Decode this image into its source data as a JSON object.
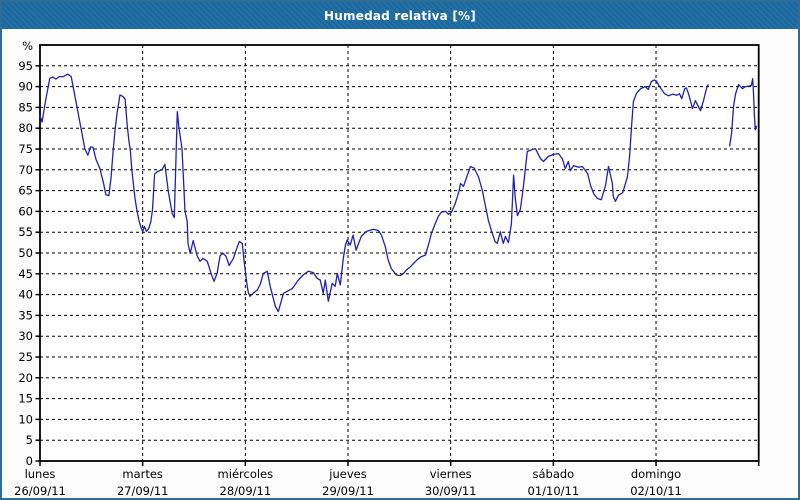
{
  "window": {
    "title": "Humedad relativa [%]"
  },
  "colors": {
    "title_bar": "#1A689F",
    "title_text": "#FFFFFF",
    "window_border": "#2E6E96",
    "panel_bg": "#FCFDFC",
    "plot_bg": "#FFFFFF",
    "plot_border": "#000000",
    "grid": "#000000",
    "tick_text": "#000000",
    "line": "#2121AF"
  },
  "chart_data": {
    "type": "line",
    "title": "Humedad relativa [%]",
    "xlabel": "",
    "ylabel": "%",
    "ylim": [
      0,
      100
    ],
    "ytick_min": 0,
    "ytick_max": 95,
    "ytick_step": 5,
    "grid": "dashed horizontal every 5 units; dashed vertical at each day boundary",
    "legend_position": "none",
    "x_unit": "hours since lunes 26/09/11 00:00",
    "x_range_hours": [
      0,
      168
    ],
    "days": [
      {
        "name": "lunes",
        "date": "26/09/11"
      },
      {
        "name": "martes",
        "date": "27/09/11"
      },
      {
        "name": "miércoles",
        "date": "28/09/11"
      },
      {
        "name": "jueves",
        "date": "29/09/11"
      },
      {
        "name": "viernes",
        "date": "30/09/11"
      },
      {
        "name": "sábado",
        "date": "01/10/11"
      },
      {
        "name": "domingo",
        "date": "02/10/11"
      }
    ],
    "series": [
      {
        "name": "Humedad relativa",
        "points": [
          [
            0,
            83
          ],
          [
            0.5,
            81.5
          ],
          [
            1.2,
            86
          ],
          [
            2.3,
            92
          ],
          [
            3,
            92.3
          ],
          [
            3.7,
            91.8
          ],
          [
            4.5,
            92.4
          ],
          [
            5.5,
            92.4
          ],
          [
            6.5,
            93
          ],
          [
            7.3,
            92.4
          ],
          [
            8.2,
            87.5
          ],
          [
            9.4,
            81
          ],
          [
            10.5,
            75
          ],
          [
            11.2,
            73.5
          ],
          [
            11.8,
            75.5
          ],
          [
            12.4,
            75.4
          ],
          [
            13.1,
            72.5
          ],
          [
            14,
            70.3
          ],
          [
            14.8,
            67
          ],
          [
            15.4,
            64
          ],
          [
            16.1,
            63.8
          ],
          [
            16.6,
            68
          ],
          [
            17.1,
            74.7
          ],
          [
            17.5,
            79.2
          ],
          [
            18,
            83.5
          ],
          [
            18.7,
            88
          ],
          [
            19.4,
            87.6
          ],
          [
            19.9,
            87
          ],
          [
            20.4,
            80.4
          ],
          [
            20.8,
            76.8
          ],
          [
            21.1,
            74.7
          ],
          [
            21.5,
            69.6
          ],
          [
            22.2,
            63.1
          ],
          [
            22.7,
            60
          ],
          [
            23.2,
            57.6
          ],
          [
            23.7,
            55.9
          ],
          [
            24,
            55.2
          ],
          [
            24.4,
            56.4
          ],
          [
            24.9,
            55.2
          ],
          [
            25.4,
            55.9
          ],
          [
            25.9,
            57.5
          ],
          [
            26.3,
            60.4
          ],
          [
            26.8,
            69
          ],
          [
            27.5,
            69.6
          ],
          [
            28.5,
            70
          ],
          [
            29.2,
            71.3
          ],
          [
            30,
            64.8
          ],
          [
            30.9,
            59.5
          ],
          [
            31.4,
            58.5
          ],
          [
            32.1,
            84
          ],
          [
            32.5,
            80
          ],
          [
            33.2,
            75.1
          ],
          [
            33.9,
            60
          ],
          [
            34.4,
            57.6
          ],
          [
            34.6,
            52.3
          ],
          [
            35.1,
            49.9
          ],
          [
            35.8,
            53
          ],
          [
            36.7,
            49.4
          ],
          [
            37.4,
            48
          ],
          [
            38.1,
            48.7
          ],
          [
            39.1,
            48
          ],
          [
            40.2,
            44.4
          ],
          [
            40.7,
            43.2
          ],
          [
            41.4,
            45.1
          ],
          [
            42.1,
            49.4
          ],
          [
            42.8,
            49.9
          ],
          [
            43.5,
            49.2
          ],
          [
            44.2,
            47
          ],
          [
            45.2,
            48.7
          ],
          [
            45.9,
            50.9
          ],
          [
            46.6,
            52.8
          ],
          [
            47.3,
            52.3
          ],
          [
            47.7,
            48
          ],
          [
            48.4,
            42.2
          ],
          [
            48.7,
            40.5
          ],
          [
            49.1,
            39.6
          ],
          [
            49.8,
            40.3
          ],
          [
            50.8,
            41.1
          ],
          [
            51.5,
            42.5
          ],
          [
            52.2,
            45.1
          ],
          [
            53.1,
            45.6
          ],
          [
            53.8,
            42
          ],
          [
            55,
            37.2
          ],
          [
            55.7,
            35.9
          ],
          [
            56.9,
            40.3
          ],
          [
            57.8,
            40.8
          ],
          [
            59,
            41.5
          ],
          [
            60.4,
            43.5
          ],
          [
            61.5,
            44.7
          ],
          [
            62.7,
            45.6
          ],
          [
            63.9,
            45.3
          ],
          [
            64.8,
            43.9
          ],
          [
            65.5,
            43.5
          ],
          [
            66.2,
            40.3
          ],
          [
            66.7,
            43.5
          ],
          [
            67.4,
            38.4
          ],
          [
            68.3,
            42.7
          ],
          [
            69,
            42
          ],
          [
            69.5,
            45.1
          ],
          [
            70.2,
            42.3
          ],
          [
            70.9,
            48.7
          ],
          [
            71.4,
            51.9
          ],
          [
            71.8,
            53.1
          ],
          [
            72.5,
            51.9
          ],
          [
            73.2,
            54.3
          ],
          [
            73.9,
            50.7
          ],
          [
            75.1,
            54
          ],
          [
            76.3,
            55.2
          ],
          [
            77.9,
            55.7
          ],
          [
            79.1,
            55.4
          ],
          [
            79.8,
            54.3
          ],
          [
            80.7,
            51.6
          ],
          [
            81.4,
            48.3
          ],
          [
            82.1,
            46.3
          ],
          [
            83.3,
            44.7
          ],
          [
            84.2,
            44.6
          ],
          [
            84.9,
            45
          ],
          [
            85.6,
            45.9
          ],
          [
            86.6,
            46.7
          ],
          [
            87.3,
            47.5
          ],
          [
            88.4,
            48.6
          ],
          [
            89.1,
            49.1
          ],
          [
            90.1,
            49.5
          ],
          [
            90.8,
            51.9
          ],
          [
            91.5,
            54.7
          ],
          [
            92.4,
            57.1
          ],
          [
            93.1,
            58.8
          ],
          [
            93.8,
            59.8
          ],
          [
            94.8,
            60
          ],
          [
            95.5,
            59.3
          ],
          [
            96.2,
            59.8
          ],
          [
            97.1,
            62
          ],
          [
            98,
            65
          ],
          [
            98.3,
            66.7
          ],
          [
            99,
            66
          ],
          [
            99.9,
            68.7
          ],
          [
            100.6,
            70.8
          ],
          [
            101.5,
            70.4
          ],
          [
            102.5,
            68.3
          ],
          [
            103.4,
            65.1
          ],
          [
            104.1,
            61.5
          ],
          [
            104.8,
            57.9
          ],
          [
            105.7,
            54.7
          ],
          [
            106.4,
            52.7
          ],
          [
            106.9,
            52.3
          ],
          [
            107.6,
            55.1
          ],
          [
            108.3,
            52.3
          ],
          [
            108.8,
            54
          ],
          [
            109.5,
            52.5
          ],
          [
            110.2,
            57
          ],
          [
            110.7,
            68.7
          ],
          [
            111.1,
            63.1
          ],
          [
            111.6,
            59
          ],
          [
            112.3,
            60.5
          ],
          [
            113,
            66
          ],
          [
            113.9,
            74.4
          ],
          [
            114.9,
            74.8
          ],
          [
            115.8,
            75.1
          ],
          [
            117,
            72.7
          ],
          [
            117.7,
            72
          ],
          [
            118.8,
            73.2
          ],
          [
            120,
            73.7
          ],
          [
            121.2,
            73.9
          ],
          [
            122.1,
            72.7
          ],
          [
            122.8,
            70.3
          ],
          [
            123.5,
            72
          ],
          [
            124,
            69.8
          ],
          [
            124.7,
            71
          ],
          [
            125.9,
            70.6
          ],
          [
            126.8,
            70.8
          ],
          [
            128,
            69.1
          ],
          [
            128.7,
            66.2
          ],
          [
            129.4,
            64.3
          ],
          [
            130.3,
            63.1
          ],
          [
            131.2,
            62.8
          ],
          [
            132.2,
            66.2
          ],
          [
            132.9,
            70.8
          ],
          [
            133.8,
            66.7
          ],
          [
            134,
            63.6
          ],
          [
            134.5,
            62.4
          ],
          [
            135.2,
            63.9
          ],
          [
            136.2,
            64.5
          ],
          [
            137.3,
            68.3
          ],
          [
            137.8,
            73
          ],
          [
            138.3,
            80.6
          ],
          [
            138.7,
            86.4
          ],
          [
            139.4,
            88.3
          ],
          [
            140.4,
            89.5
          ],
          [
            141.5,
            90
          ],
          [
            142.2,
            89.3
          ],
          [
            142.9,
            91.2
          ],
          [
            143.6,
            91.6
          ],
          [
            144.1,
            91.3
          ],
          [
            144.8,
            90
          ],
          [
            145.3,
            89.3
          ],
          [
            146,
            88.3
          ],
          [
            146.9,
            87.8
          ],
          [
            147.9,
            88.2
          ],
          [
            148.8,
            87.9
          ],
          [
            149.5,
            88.3
          ],
          [
            150,
            87.1
          ],
          [
            150.7,
            89.5
          ],
          [
            151.1,
            89.7
          ],
          [
            151.6,
            88.3
          ],
          [
            152.1,
            86.4
          ],
          [
            152.5,
            84.7
          ],
          [
            153.2,
            86.6
          ],
          [
            153.9,
            85.2
          ],
          [
            154.4,
            84.2
          ],
          [
            155.1,
            86.6
          ],
          [
            155.6,
            88.8
          ],
          [
            156,
            90.2
          ],
          [
            156.3,
            90.5
          ],
          null,
          [
            161.2,
            75.6
          ],
          [
            161.7,
            79
          ],
          [
            162.1,
            85.2
          ],
          [
            162.6,
            88.3
          ],
          [
            163.3,
            90.5
          ],
          [
            164.2,
            89.5
          ],
          [
            164.9,
            90
          ],
          [
            165.6,
            90.1
          ],
          [
            166.3,
            90.3
          ],
          [
            166.6,
            91.9
          ],
          [
            166.8,
            88
          ],
          [
            167,
            83
          ],
          [
            167.2,
            79.6
          ],
          [
            167.5,
            80.6
          ]
        ]
      }
    ]
  }
}
